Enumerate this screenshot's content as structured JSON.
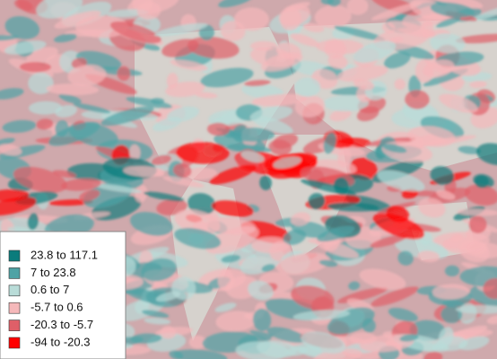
{
  "legend": {
    "items": [
      {
        "label": "23.8 to 117.1",
        "color": "#0a7c7c"
      },
      {
        "label": "7 to 23.8",
        "color": "#4fa3a5"
      },
      {
        "label": "0.6 to 7",
        "color": "#b9dcd8"
      },
      {
        "label": "-5.7 to 0.6",
        "color": "#f5b8ba"
      },
      {
        "label": "-20.3 to -5.7",
        "color": "#df5f68"
      },
      {
        "label": "-94 to -20.3",
        "color": "#ff0000"
      }
    ]
  }
}
